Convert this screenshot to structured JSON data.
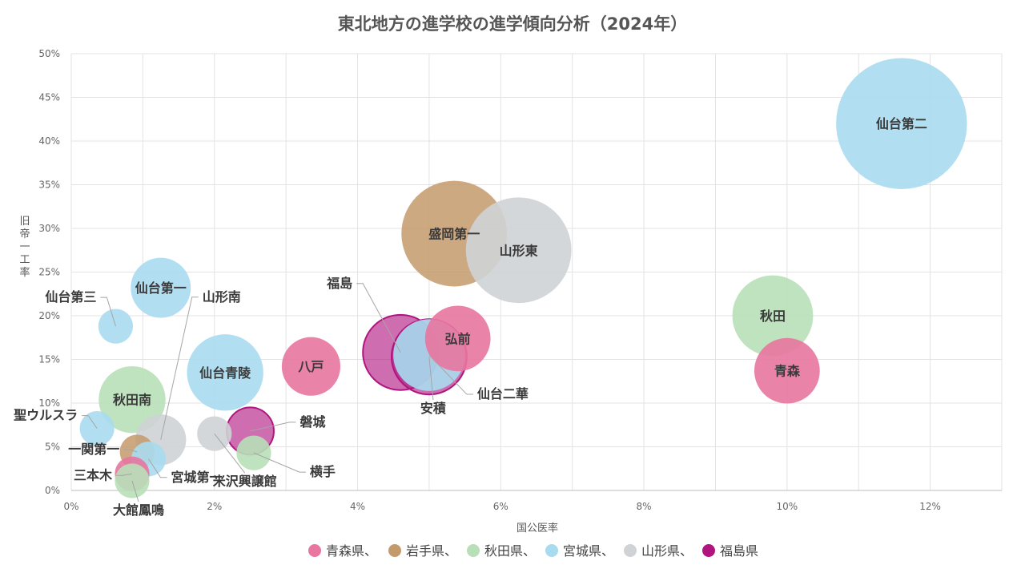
{
  "chart_data": {
    "type": "bubble",
    "title": "東北地方の進学校の進学傾向分析（2024年）",
    "xlabel": "国公医率",
    "ylabel": "旧帝一工率",
    "xlim": [
      0,
      13
    ],
    "ylim": [
      0,
      50
    ],
    "x_ticks": [
      "0%",
      "2%",
      "4%",
      "6%",
      "8%",
      "10%",
      "12%"
    ],
    "y_ticks": [
      "0%",
      "5%",
      "10%",
      "15%",
      "20%",
      "25%",
      "30%",
      "35%",
      "40%",
      "45%",
      "50%"
    ],
    "grid": true,
    "legend_position": "bottom",
    "groups": [
      {
        "name": "青森県",
        "color": "#e8769f"
      },
      {
        "name": "岩手県",
        "color": "#c49a6c"
      },
      {
        "name": "秋田県",
        "color": "#b8dfb8"
      },
      {
        "name": "宮城県",
        "color": "#a8dbef"
      },
      {
        "name": "山形県",
        "color": "#cfd3d6"
      },
      {
        "name": "福島県",
        "color": "#b0157f"
      }
    ],
    "points": [
      {
        "label": "仙台第二",
        "group": "宮城県",
        "x": 11.6,
        "y": 42.0,
        "size": 100
      },
      {
        "label": "盛岡第一",
        "group": "岩手県",
        "x": 5.35,
        "y": 29.4,
        "size": 65
      },
      {
        "label": "山形東",
        "group": "山形県",
        "x": 6.25,
        "y": 27.5,
        "size": 65
      },
      {
        "label": "秋田",
        "group": "秋田県",
        "x": 9.8,
        "y": 20.0,
        "size": 38
      },
      {
        "label": "青森",
        "group": "青森県",
        "x": 10.0,
        "y": 13.7,
        "size": 25
      },
      {
        "label": "弘前",
        "group": "青森県",
        "x": 5.4,
        "y": 17.4,
        "size": 25
      },
      {
        "label": "仙台二華",
        "group": "宮城県",
        "x": 5.0,
        "y": 15.5,
        "size": 30
      },
      {
        "label": "安積",
        "group": "福島県",
        "x": 5.0,
        "y": 15.3,
        "size": 33
      },
      {
        "label": "福島",
        "group": "福島県",
        "x": 4.6,
        "y": 15.8,
        "size": 33
      },
      {
        "label": "八戸",
        "group": "青森県",
        "x": 3.35,
        "y": 14.2,
        "size": 20
      },
      {
        "label": "仙台青陵",
        "group": "宮城県",
        "x": 2.15,
        "y": 13.5,
        "size": 34
      },
      {
        "label": "仙台第一",
        "group": "宮城県",
        "x": 1.25,
        "y": 23.2,
        "size": 21
      },
      {
        "label": "仙台第三",
        "group": "宮城県",
        "x": 0.62,
        "y": 18.8,
        "size": 7
      },
      {
        "label": "秋田南",
        "group": "秋田県",
        "x": 0.85,
        "y": 10.4,
        "size": 26
      },
      {
        "label": "山形南",
        "group": "山形県",
        "x": 1.25,
        "y": 5.8,
        "size": 15
      },
      {
        "label": "聖ウルスラ",
        "group": "宮城県",
        "x": 0.36,
        "y": 7.1,
        "size": 7
      },
      {
        "label": "一関第一",
        "group": "岩手県",
        "x": 0.92,
        "y": 4.4,
        "size": 7
      },
      {
        "label": "宮城第一",
        "group": "宮城県",
        "x": 1.08,
        "y": 3.6,
        "size": 7
      },
      {
        "label": "三本木",
        "group": "青森県",
        "x": 0.85,
        "y": 1.9,
        "size": 7
      },
      {
        "label": "大館鳳鳴",
        "group": "秋田県",
        "x": 0.85,
        "y": 1.1,
        "size": 7
      },
      {
        "label": "米沢興譲館",
        "group": "山形県",
        "x": 2.0,
        "y": 6.5,
        "size": 7
      },
      {
        "label": "磐城",
        "group": "福島県",
        "x": 2.5,
        "y": 6.8,
        "size": 13
      },
      {
        "label": "横手",
        "group": "秋田県",
        "x": 2.55,
        "y": 4.3,
        "size": 7
      }
    ]
  }
}
